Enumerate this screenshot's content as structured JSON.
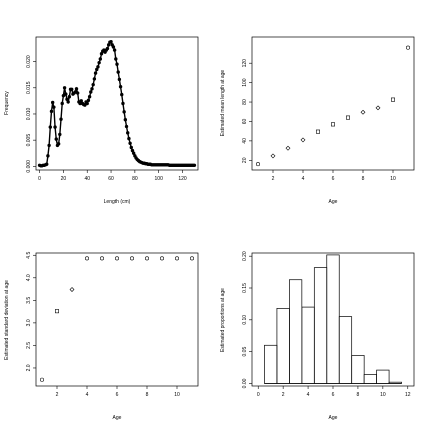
{
  "chart_data": [
    {
      "type": "line",
      "xlabel": "Length (cm)",
      "ylabel": "Frequency",
      "xlim": [
        -3,
        133
      ],
      "ylim": [
        -0.0007,
        0.0247
      ],
      "xticks": [
        0,
        20,
        40,
        60,
        80,
        100,
        120
      ],
      "yticks": [
        0.0,
        0.005,
        0.01,
        0.015,
        0.02
      ],
      "ytick_labels": [
        "0.000",
        "0.005",
        "0.010",
        "0.015",
        "0.020"
      ],
      "x": [
        0,
        1,
        2,
        3,
        4,
        5,
        6,
        7,
        8,
        9,
        10,
        11,
        12,
        13,
        14,
        15,
        16,
        17,
        18,
        19,
        20,
        21,
        22,
        23,
        24,
        25,
        26,
        27,
        28,
        29,
        30,
        31,
        32,
        33,
        34,
        35,
        36,
        37,
        38,
        39,
        40,
        41,
        42,
        43,
        44,
        45,
        46,
        47,
        48,
        49,
        50,
        51,
        52,
        53,
        54,
        55,
        56,
        57,
        58,
        59,
        60,
        61,
        62,
        63,
        64,
        65,
        66,
        67,
        68,
        69,
        70,
        71,
        72,
        73,
        74,
        75,
        76,
        77,
        78,
        79,
        80,
        81,
        82,
        83,
        84,
        85,
        86,
        87,
        88,
        89,
        90,
        91,
        92,
        93,
        94,
        95,
        96,
        97,
        98,
        99,
        100,
        101,
        102,
        103,
        104,
        105,
        106,
        107,
        108,
        109,
        110,
        111,
        112,
        113,
        114,
        115,
        116,
        117,
        118,
        119,
        120,
        121,
        122,
        123,
        124,
        125,
        126,
        127,
        128,
        129,
        130
      ],
      "y": [
        0.0002,
        0.0001,
        0.0001,
        0.0002,
        0.0002,
        0.0003,
        0.0004,
        0.002,
        0.004,
        0.0075,
        0.0105,
        0.0122,
        0.0113,
        0.0075,
        0.0052,
        0.004,
        0.0043,
        0.0061,
        0.009,
        0.012,
        0.0135,
        0.015,
        0.0138,
        0.0128,
        0.0123,
        0.0133,
        0.0147,
        0.0147,
        0.0138,
        0.014,
        0.0142,
        0.0148,
        0.014,
        0.0123,
        0.012,
        0.0125,
        0.012,
        0.0118,
        0.0117,
        0.0123,
        0.012,
        0.0126,
        0.0133,
        0.0142,
        0.0148,
        0.0156,
        0.0167,
        0.0178,
        0.0185,
        0.019,
        0.0198,
        0.0205,
        0.0215,
        0.022,
        0.0222,
        0.0218,
        0.0222,
        0.0225,
        0.0232,
        0.0237,
        0.0238,
        0.0232,
        0.0228,
        0.0222,
        0.0205,
        0.0195,
        0.018,
        0.0166,
        0.0152,
        0.0137,
        0.012,
        0.0104,
        0.0089,
        0.0076,
        0.0064,
        0.0053,
        0.0044,
        0.0036,
        0.003,
        0.0025,
        0.002,
        0.0016,
        0.0013,
        0.0011,
        0.0009,
        0.0008,
        0.0007,
        0.0006,
        0.0006,
        0.0005,
        0.0005,
        0.0004,
        0.0004,
        0.0004,
        0.0003,
        0.0003,
        0.0003,
        0.0003,
        0.0003,
        0.0003,
        0.0003,
        0.0003,
        0.0003,
        0.0003,
        0.0003,
        0.0003,
        0.0003,
        0.0003,
        0.0003,
        0.0002,
        0.0002,
        0.0002,
        0.0002,
        0.0002,
        0.0002,
        0.0002,
        0.0002,
        0.0002,
        0.0002,
        0.0002,
        0.0002,
        0.0002,
        0.0002,
        0.0002,
        0.0002,
        0.0002,
        0.0002,
        0.0002,
        0.0002,
        0.0002,
        0.0002
      ]
    },
    {
      "type": "scatter",
      "xlabel": "Age",
      "ylabel": "Estimated mean length at age",
      "xlim": [
        0.6,
        11.4
      ],
      "ylim": [
        10,
        147
      ],
      "xticks": [
        2,
        4,
        6,
        8,
        10
      ],
      "yticks": [
        20,
        40,
        60,
        80,
        100,
        120
      ],
      "x": [
        1,
        2,
        3,
        4,
        5,
        6,
        7,
        8,
        9,
        10,
        11
      ],
      "y": [
        16,
        24.5,
        32.5,
        41,
        49.5,
        57,
        64,
        69.5,
        74,
        82.5,
        136
      ],
      "markers": [
        "circle",
        "diamond",
        "diamond",
        "diamond",
        "square",
        "square",
        "square",
        "diamond",
        "diamond",
        "square",
        "circle"
      ]
    },
    {
      "type": "scatter",
      "xlabel": "Age",
      "ylabel": "Estimated standard deviation at age",
      "xlim": [
        0.6,
        11.4
      ],
      "ylim": [
        1.6,
        4.55
      ],
      "xticks": [
        2,
        4,
        6,
        8,
        10
      ],
      "yticks": [
        2.0,
        2.5,
        3.0,
        3.5,
        4.0,
        4.5
      ],
      "ytick_labels": [
        "2.0",
        "2.5",
        "3.0",
        "3.5",
        "4.0",
        "4.5"
      ],
      "x": [
        1,
        2,
        3,
        4,
        5,
        6,
        7,
        8,
        9,
        10,
        11
      ],
      "y": [
        1.74,
        3.26,
        3.74,
        4.43,
        4.43,
        4.43,
        4.43,
        4.43,
        4.43,
        4.43,
        4.43
      ],
      "markers": [
        "circle",
        "square",
        "diamond",
        "circle",
        "circle",
        "circle",
        "circle",
        "circle",
        "circle",
        "circle",
        "circle"
      ]
    },
    {
      "type": "bar",
      "xlabel": "Age",
      "ylabel": "Estimated proportions at age",
      "xlim": [
        -0.5,
        12.5
      ],
      "ylim": [
        -0.004,
        0.205
      ],
      "xticks": [
        0,
        2,
        4,
        6,
        8,
        10,
        12
      ],
      "yticks": [
        0.0,
        0.05,
        0.1,
        0.15,
        0.2
      ],
      "ytick_labels": [
        "0.00",
        "0.05",
        "0.10",
        "0.15",
        "0.20"
      ],
      "categories": [
        1,
        2,
        3,
        4,
        5,
        6,
        7,
        8,
        9,
        10,
        11
      ],
      "values": [
        0.06,
        0.118,
        0.163,
        0.12,
        0.182,
        0.202,
        0.105,
        0.044,
        0.014,
        0.021,
        0.002
      ]
    }
  ]
}
